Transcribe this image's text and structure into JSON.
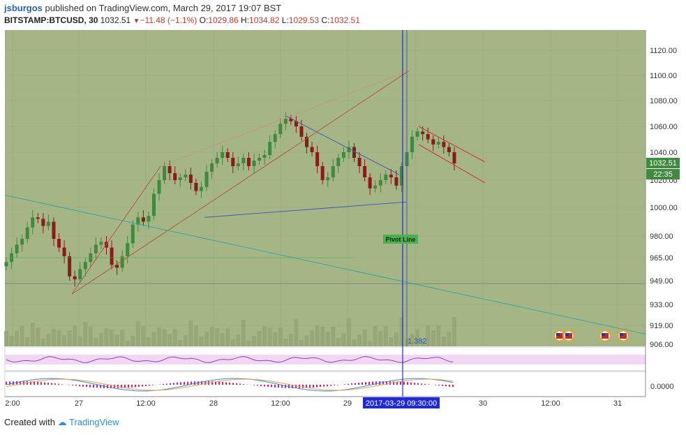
{
  "header": {
    "author": "jsburgos",
    "published": "published on TradingView.com, March 29, 2017 19:07 BST",
    "symbol": "BITSTAMP:BTCUSD, 30",
    "last": "1032.51",
    "change": "−11.48 (−1.1%)",
    "o_label": "O:",
    "o_val": "1029.86",
    "h_label": "H:",
    "h_val": "1034.82",
    "l_label": "L:",
    "l_val": "1029.53",
    "c_label": "C:",
    "c_val": "1032.51"
  },
  "footer": {
    "created": "Created with",
    "brand": "TradingView"
  },
  "annotations": {
    "pivot_label": "Pivot Line",
    "fib_label": "1.382",
    "cursor_time": "2017-03-29 09:30:00"
  },
  "price_badge": {
    "price": "1032.51",
    "countdown": "22:35"
  },
  "macd_label": "0.0000",
  "colors": {
    "up": "#3f8a3f",
    "down": "#8b1a1a",
    "bg": "#a6b585",
    "cursor": "#1f2ad6",
    "pivot": "#4caf50",
    "bull": "#2e7d32",
    "bear": "#c62828"
  },
  "chart_data": {
    "type": "candlestick",
    "title": "BITSTAMP:BTCUSD, 30",
    "y_ticks": [
      1120,
      1100,
      1080,
      1060,
      1040,
      1020,
      1000,
      980,
      965,
      949,
      933,
      919,
      906
    ],
    "y_tick_labels": [
      "1120.00",
      "1100.00",
      "1080.00",
      "1060.00",
      "1040.00",
      "1020.00",
      "1000.00",
      "980.00",
      "965.00",
      "949.00",
      "933.00",
      "919.00",
      "906.00"
    ],
    "x_tick_labels": [
      "2:00",
      "27",
      "12:00",
      "28",
      "12:00",
      "29",
      "12:00",
      "30",
      "12:00",
      "31"
    ],
    "indicators": [
      "RSI",
      "MACD"
    ],
    "grid": true,
    "closes": [
      962,
      968,
      974,
      978,
      986,
      993,
      992,
      987,
      990,
      978,
      972,
      966,
      952,
      950,
      957,
      962,
      968,
      974,
      976,
      972,
      960,
      958,
      966,
      975,
      988,
      993,
      990,
      994,
      1010,
      1020,
      1030,
      1025,
      1020,
      1022,
      1024,
      1018,
      1012,
      1015,
      1026,
      1032,
      1036,
      1040,
      1036,
      1030,
      1032,
      1036,
      1030,
      1034,
      1036,
      1038,
      1048,
      1054,
      1062,
      1066,
      1064,
      1060,
      1052,
      1044,
      1040,
      1030,
      1020,
      1022,
      1030,
      1036,
      1040,
      1044,
      1036,
      1030,
      1022,
      1014,
      1016,
      1020,
      1024,
      1022,
      1016,
      1030,
      1040,
      1052,
      1056,
      1054,
      1050,
      1046,
      1048,
      1044,
      1040,
      1032
    ]
  }
}
